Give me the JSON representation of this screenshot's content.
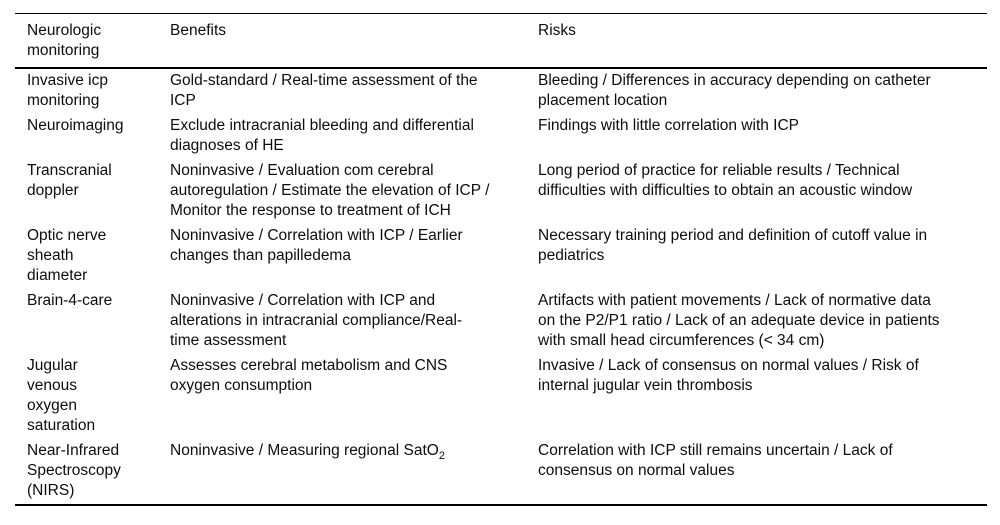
{
  "page": {
    "background_color": "#ffffff",
    "text_color": "#0d0d0d",
    "rule_color": "#000000"
  },
  "table": {
    "columns": [
      "Neurologic monitoring",
      "Benefits",
      "Risks"
    ],
    "rows": [
      {
        "monitoring": "Invasive icp monitoring",
        "benefits": "Gold-standard / Real-time assessment of the ICP",
        "risks": "Bleeding / Differences in accuracy depending on catheter placement location"
      },
      {
        "monitoring": "Neuroimaging",
        "benefits": "Exclude intracranial bleeding and differential diagnoses of HE",
        "risks": "Findings with little correlation with ICP"
      },
      {
        "monitoring": "Transcranial doppler",
        "benefits": "Noninvasive / Evaluation com cerebral autoregulation / Estimate the elevation of ICP / Monitor the response to treatment of ICH",
        "risks": "Long period of practice for reliable results / Technical difficulties with difficulties to obtain an acoustic window"
      },
      {
        "monitoring": "Optic nerve sheath diameter",
        "benefits": "Noninvasive / Correlation with ICP / Earlier changes than papilledema",
        "risks": "Necessary training period and definition of cutoff value in pediatrics"
      },
      {
        "monitoring": "Brain-4-care",
        "benefits": "Noninvasive / Correlation with ICP and alterations in intracranial compliance/Real-time assessment",
        "risks": "Artifacts with patient movements / Lack of normative data on the P2/P1 ratio / Lack of an adequate device in patients with small head circumferences (< 34 cm)"
      },
      {
        "monitoring": "Jugular venous oxygen saturation",
        "benefits": "Assesses cerebral metabolism and CNS oxygen consumption",
        "risks": "Invasive / Lack of consensus on normal values / Risk of internal jugular vein thrombosis"
      },
      {
        "monitoring": "Near-Infrared Spectroscopy (NIRS)",
        "benefits": "Noninvasive / Measuring regional SatO",
        "benefits_sub": "2",
        "risks": "Correlation with ICP still remains uncertain / Lack of consensus on normal values"
      }
    ]
  }
}
